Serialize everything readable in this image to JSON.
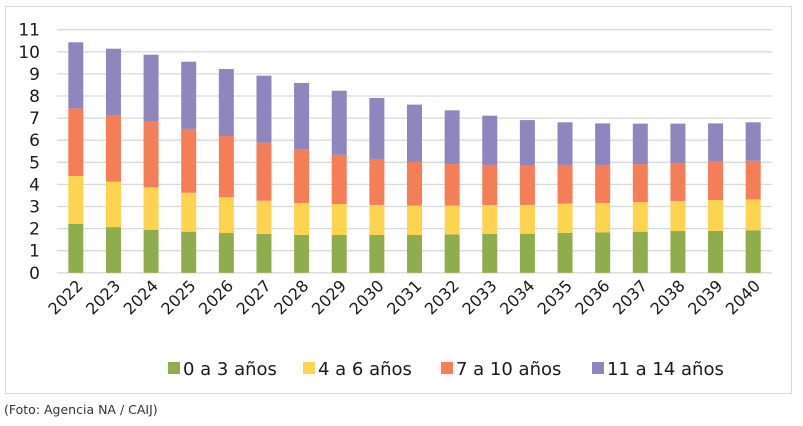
{
  "caption": "(Foto: Agencia NA / CAIJ)",
  "chart_data": {
    "type": "bar",
    "stacked": true,
    "title": "",
    "xlabel": "",
    "ylabel": "",
    "ylim": [
      0,
      11
    ],
    "yticks": [
      0,
      1,
      2,
      3,
      4,
      5,
      6,
      7,
      8,
      9,
      10,
      11
    ],
    "grid": true,
    "legend_position": "bottom",
    "categories": [
      "2022",
      "2023",
      "2024",
      "2025",
      "2026",
      "2027",
      "2028",
      "2029",
      "2030",
      "2031",
      "2032",
      "2033",
      "2034",
      "2035",
      "2036",
      "2037",
      "2038",
      "2039",
      "2040"
    ],
    "series": [
      {
        "name": "0 a 3 años",
        "color": "#8fad4c",
        "values": [
          2.22,
          2.07,
          1.95,
          1.86,
          1.8,
          1.76,
          1.72,
          1.71,
          1.71,
          1.71,
          1.74,
          1.76,
          1.77,
          1.81,
          1.83,
          1.86,
          1.89,
          1.9,
          1.92
        ]
      },
      {
        "name": "4 a 6 años",
        "color": "#fdd44f",
        "values": [
          2.16,
          2.05,
          1.92,
          1.76,
          1.62,
          1.5,
          1.44,
          1.4,
          1.36,
          1.33,
          1.3,
          1.31,
          1.3,
          1.32,
          1.33,
          1.34,
          1.36,
          1.39,
          1.4
        ]
      },
      {
        "name": "7 a 10 años",
        "color": "#f47e57",
        "values": [
          3.06,
          3.02,
          2.97,
          2.89,
          2.77,
          2.63,
          2.44,
          2.23,
          2.08,
          1.97,
          1.88,
          1.81,
          1.78,
          1.75,
          1.7,
          1.72,
          1.72,
          1.74,
          1.75
        ]
      },
      {
        "name": "11 a 14 años",
        "color": "#8e86bd",
        "values": [
          2.99,
          3.0,
          3.03,
          3.04,
          3.03,
          3.03,
          2.99,
          2.9,
          2.76,
          2.6,
          2.43,
          2.23,
          2.06,
          1.93,
          1.9,
          1.83,
          1.78,
          1.73,
          1.74
        ]
      }
    ]
  }
}
